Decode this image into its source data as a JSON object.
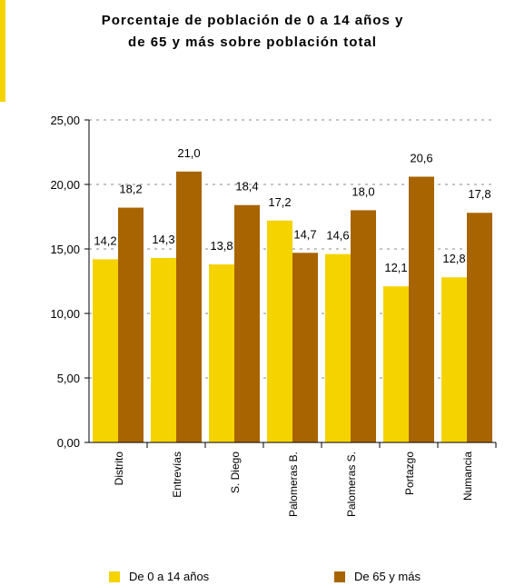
{
  "chart_data": {
    "type": "bar",
    "title": [
      "Porcentaje de población de 0 a 14 años y",
      "de 65 y más sobre población total"
    ],
    "categories": [
      "Distrito",
      "Entrevías",
      "S. Diego",
      "Palomeras B.",
      "Palomeras S.",
      "Portazgo",
      "Numancia"
    ],
    "series": [
      {
        "name": "De 0 a 14 años",
        "color": "#f5d300",
        "values": [
          14.2,
          14.3,
          13.8,
          17.2,
          14.6,
          12.1,
          12.8
        ],
        "labels": [
          "14,2",
          "14,3",
          "13,8",
          "17,2",
          "14,6",
          "12,1",
          "12,8"
        ]
      },
      {
        "name": "De 65 y más",
        "color": "#a86400",
        "values": [
          18.2,
          21.0,
          18.4,
          14.7,
          18.0,
          20.6,
          17.8
        ],
        "labels": [
          "18,2",
          "21,0",
          "18,4",
          "14,7",
          "18,0",
          "20,6",
          "17,8"
        ]
      }
    ],
    "ylim": [
      0,
      25
    ],
    "yticks": [
      0,
      5,
      10,
      15,
      20,
      25
    ],
    "ytick_labels": [
      "0,00",
      "5,00",
      "10,00",
      "15,00",
      "20,00",
      "25,00"
    ],
    "grid": true,
    "legend_position": "bottom"
  }
}
